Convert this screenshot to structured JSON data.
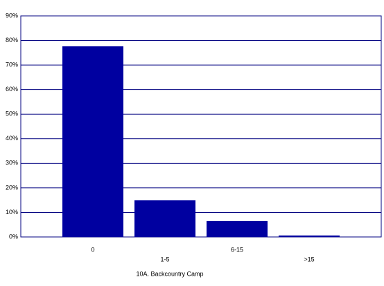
{
  "chart_data": {
    "type": "bar",
    "title": "10A. Backcountry Camp",
    "categories": [
      "0",
      "1-5",
      "6-15",
      ">15"
    ],
    "values": [
      77.6,
      14.9,
      6.5,
      0.6
    ],
    "color": "#0000a0",
    "ylim": [
      0,
      90
    ],
    "yticks": [
      {
        "value": 0,
        "label": "0%"
      },
      {
        "value": 10,
        "label": "10%"
      },
      {
        "value": 20,
        "label": "20%"
      },
      {
        "value": 30,
        "label": "30%"
      },
      {
        "value": 40,
        "label": "40%"
      },
      {
        "value": 50,
        "label": "50%"
      },
      {
        "value": 60,
        "label": "60%"
      },
      {
        "value": 70,
        "label": "70%"
      },
      {
        "value": 80,
        "label": "80%"
      },
      {
        "value": 90,
        "label": "90%"
      }
    ],
    "grid": true
  }
}
